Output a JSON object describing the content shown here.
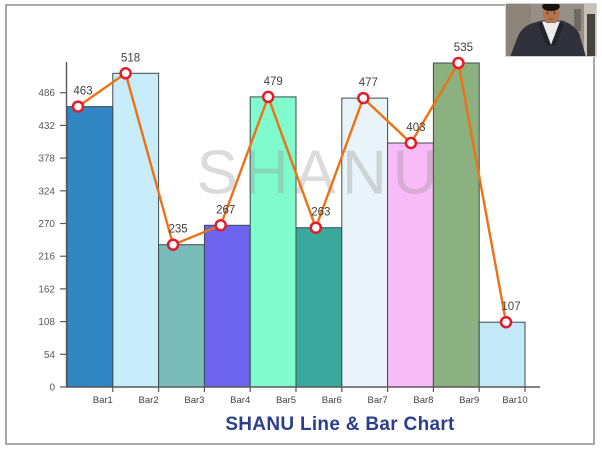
{
  "window": {
    "border_color": "#A8A8A8"
  },
  "profile_photo_alt": "man in dark suit and white shirt",
  "chart_data": {
    "type": "bar+line",
    "title": "SHANU Line & Bar Chart",
    "watermark": "SHANU",
    "categories": [
      "Bar1",
      "Bar2",
      "Bar3",
      "Bar4",
      "Bar5",
      "Bar6",
      "Bar7",
      "Bar8",
      "Bar9",
      "Bar10"
    ],
    "values": [
      463,
      518,
      235,
      267,
      479,
      263,
      477,
      403,
      535,
      107
    ],
    "value_labels_shown": true,
    "y_ticks": [
      0,
      54,
      108,
      162,
      216,
      270,
      324,
      378,
      432,
      486
    ],
    "ylim": [
      0,
      537
    ],
    "xlabel": "",
    "ylabel": "",
    "grid": false,
    "legend": "none",
    "bar_colors": [
      "#2F86C2",
      "#C8ECF9",
      "#7ABCBA",
      "#6C63EF",
      "#80FBCD",
      "#3AA89D",
      "#E9F3FA",
      "#F9BAF8",
      "#8BB181",
      "#C3E9F8"
    ],
    "bar_border_color": "#3F4A4A",
    "line_color": "#EE7213",
    "marker_fill": "#FFFFFF",
    "marker_ring_color": "#E51A2B",
    "axis_color": "#595959",
    "tick_label_color": "#595959",
    "x_label_color": "#404040",
    "value_label_color": "#404040",
    "title_color": "#293E8C",
    "watermark_color": "rgba(145,145,145,0.33)"
  }
}
